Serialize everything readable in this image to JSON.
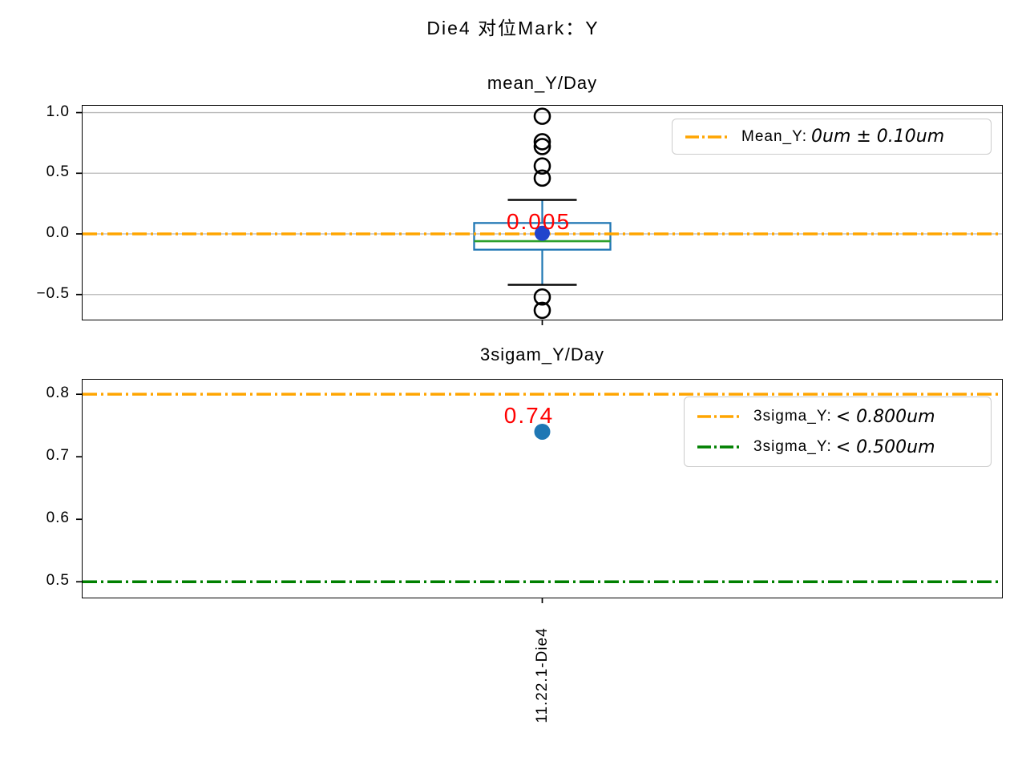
{
  "figure": {
    "title": "Die4 对位Mark：Y",
    "background": "#ffffff"
  },
  "x_axis": {
    "category": "11.22.1-Die4"
  },
  "chart_data": [
    {
      "type": "box",
      "title": "mean_Y/Day",
      "categories": [
        "11.22.1-Die4"
      ],
      "ylim": [
        -0.7,
        1.05
      ],
      "ytick_labels": [
        "1.0",
        "0.5",
        "0.0",
        "−0.5"
      ],
      "ytick_values": [
        1.0,
        0.5,
        0.0,
        -0.5
      ],
      "grid": true,
      "grid_color": "#b9b9b9",
      "box": {
        "q1": -0.13,
        "median": -0.06,
        "q3": 0.09,
        "whisker_low": -0.42,
        "whisker_high": 0.28,
        "mean": 0.005,
        "outliers": [
          0.97,
          0.76,
          0.72,
          0.56,
          0.46,
          -0.52,
          -0.63
        ],
        "box_color": "#1f77b4",
        "whisker_color": "#1f77b4",
        "cap_color": "#000000",
        "median_color": "#2ca02c",
        "mean_color": "#2244cc",
        "outlier_color": "#000000"
      },
      "annotation": {
        "text": "0.005",
        "color": "#ff0000"
      },
      "ref_lines": [
        {
          "value": 0.0,
          "color": "#ffa500",
          "style": "dashdot",
          "label_prefix": "Mean_Y:",
          "label_math": "0um ± 0.10um"
        }
      ],
      "legend_position": "upper right"
    },
    {
      "type": "scatter",
      "title": "3sigam_Y/Day",
      "categories": [
        "11.22.1-Die4"
      ],
      "values": [
        0.74
      ],
      "point_color": "#1f77b4",
      "ylim": [
        0.476,
        0.822
      ],
      "ytick_labels": [
        "0.8",
        "0.7",
        "0.6",
        "0.5"
      ],
      "ytick_values": [
        0.8,
        0.7,
        0.6,
        0.5
      ],
      "grid": false,
      "annotation": {
        "text": "0.74",
        "color": "#ff0000"
      },
      "ref_lines": [
        {
          "value": 0.8,
          "color": "#ffa500",
          "style": "dashdot",
          "label_prefix": "3sigma_Y:",
          "label_math": "< 0.800um"
        },
        {
          "value": 0.5,
          "color": "#008000",
          "style": "dashdot",
          "label_prefix": "3sigma_Y:",
          "label_math": "< 0.500um"
        }
      ],
      "legend_position": "upper right"
    }
  ]
}
